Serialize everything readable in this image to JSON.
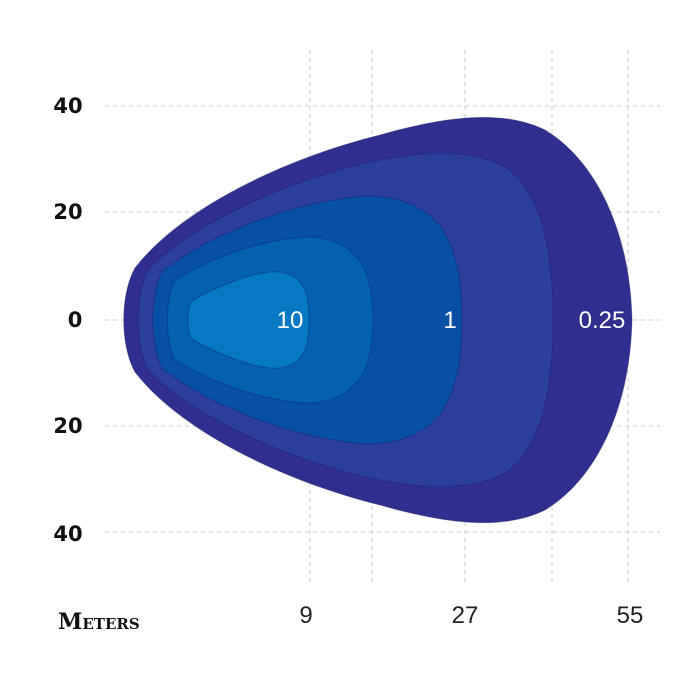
{
  "chart_data": {
    "type": "area",
    "title": "",
    "xlabel": "Meters",
    "ylabel": "",
    "y_ticks": [
      "40",
      "20",
      "0",
      "20",
      "40"
    ],
    "x_ticks": [
      "9",
      "27",
      "55"
    ],
    "grid": true,
    "zones": [
      {
        "label": "0.25",
        "color": "#302F90"
      },
      {
        "label": "",
        "color": "#2D3F9C"
      },
      {
        "label": "1",
        "color": "#0750A6"
      },
      {
        "label": "",
        "color": "#0361AE"
      },
      {
        "label": "10",
        "color": "#0579C4"
      }
    ]
  }
}
